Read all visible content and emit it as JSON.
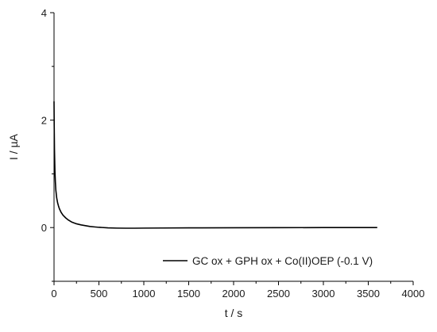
{
  "chart_data": {
    "type": "line",
    "xlabel": "t / s",
    "ylabel": "I / µA",
    "xlim": [
      0,
      4000
    ],
    "ylim": [
      -1,
      4
    ],
    "x_ticks": [
      0,
      500,
      1000,
      1500,
      2000,
      2500,
      3000,
      3500,
      4000
    ],
    "y_ticks": [
      0,
      2,
      4
    ],
    "grid": false,
    "legend_position": "bottom-right",
    "series": [
      {
        "name": "GC ox + GPH ox + Co(II)OEP (-0.1 V)",
        "color": "#000000",
        "x": [
          0,
          2,
          5,
          10,
          15,
          20,
          30,
          40,
          50,
          60,
          80,
          100,
          130,
          160,
          200,
          250,
          300,
          350,
          400,
          450,
          500,
          600,
          700,
          800,
          900,
          1000,
          1200,
          1500,
          2000,
          2500,
          3000,
          3500,
          3600
        ],
        "y": [
          2.35,
          1.9,
          1.45,
          1.05,
          0.85,
          0.7,
          0.55,
          0.46,
          0.4,
          0.35,
          0.28,
          0.23,
          0.18,
          0.14,
          0.1,
          0.07,
          0.05,
          0.035,
          0.02,
          0.012,
          0.005,
          -0.005,
          -0.01,
          -0.012,
          -0.012,
          -0.01,
          -0.008,
          -0.006,
          -0.004,
          -0.002,
          0.0,
          0.0,
          0.0
        ]
      }
    ]
  }
}
